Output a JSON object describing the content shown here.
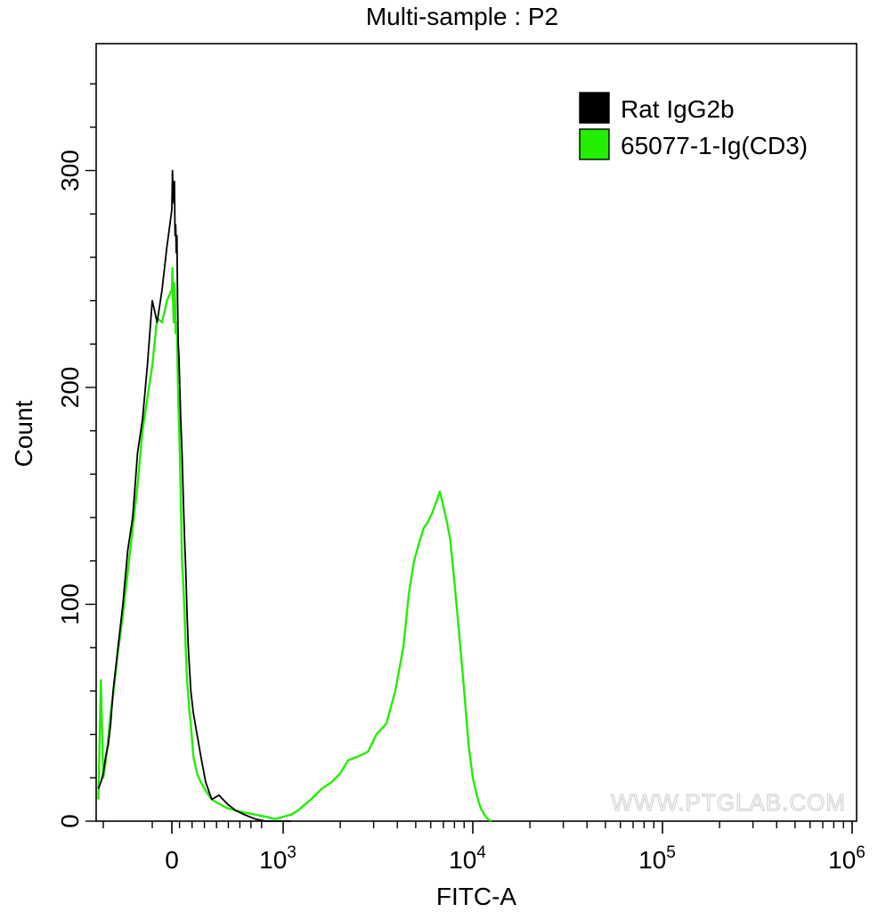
{
  "chart_data": {
    "type": "line",
    "title": "Multi-sample : P2",
    "xlabel": "FITC-A",
    "ylabel": "Count",
    "x_scale": "biexponential",
    "x_ticks": [
      {
        "label": "0",
        "value": 0
      },
      {
        "label": "10",
        "sup": "3",
        "value": 1000
      },
      {
        "label": "10",
        "sup": "4",
        "value": 10000
      },
      {
        "label": "10",
        "sup": "5",
        "value": 100000
      },
      {
        "label": "10",
        "sup": "6",
        "value": 1000000
      }
    ],
    "y_ticks": [
      {
        "label": "0",
        "value": 0
      },
      {
        "label": "100",
        "value": 100
      },
      {
        "label": "200",
        "value": 200
      },
      {
        "label": "300",
        "value": 300
      }
    ],
    "ylim": [
      0,
      360
    ],
    "grid": false,
    "legend_position": "top-right",
    "watermark": "WWW.PTGLAB.COM",
    "series": [
      {
        "name": "Rat IgG2b",
        "color": "#000000",
        "x": [
          -150,
          -145,
          -140,
          -135,
          -130,
          -125,
          -120,
          -110,
          -100,
          -90,
          -80,
          -70,
          -60,
          -50,
          -40,
          -30,
          -20,
          -10,
          0,
          5,
          10,
          15,
          20,
          25,
          30,
          35,
          40,
          45,
          50,
          55,
          60,
          70,
          80,
          90,
          100,
          110,
          120,
          130,
          150,
          170,
          200,
          230,
          270,
          320,
          380,
          450,
          520,
          600,
          700,
          800,
          900,
          1000,
          1100
        ],
        "y": [
          15,
          18,
          22,
          30,
          35,
          45,
          60,
          80,
          100,
          125,
          140,
          170,
          185,
          210,
          240,
          230,
          245,
          265,
          282,
          300,
          290,
          285,
          295,
          270,
          275,
          262,
          270,
          240,
          220,
          215,
          205,
          185,
          170,
          150,
          130,
          115,
          95,
          80,
          60,
          50,
          40,
          30,
          18,
          10,
          12,
          8,
          5,
          3,
          1,
          0,
          0,
          0,
          0
        ]
      },
      {
        "name": "65077-1-Ig(CD3)",
        "color": "#22ee00",
        "x": [
          -150,
          -145,
          -140,
          -135,
          -130,
          -125,
          -120,
          -110,
          -100,
          -90,
          -80,
          -70,
          -60,
          -50,
          -40,
          -30,
          -20,
          -10,
          0,
          5,
          10,
          15,
          20,
          25,
          30,
          35,
          40,
          45,
          50,
          60,
          70,
          80,
          90,
          100,
          110,
          120,
          130,
          140,
          150,
          170,
          200,
          230,
          270,
          320,
          380,
          450,
          520,
          600,
          700,
          800,
          900,
          1000,
          1100,
          1200,
          1400,
          1600,
          1800,
          2000,
          2200,
          2500,
          2800,
          3100,
          3500,
          3900,
          4300,
          4600,
          4900,
          5200,
          5500,
          5800,
          6100,
          6400,
          6700,
          7000,
          7300,
          7600,
          8000,
          8500,
          9000,
          9500,
          10000,
          10500,
          11000,
          11500,
          12000,
          12500
        ],
        "y": [
          10,
          65,
          20,
          28,
          38,
          50,
          58,
          78,
          95,
          115,
          135,
          155,
          180,
          195,
          210,
          232,
          230,
          240,
          245,
          255,
          238,
          230,
          248,
          240,
          225,
          230,
          230,
          210,
          195,
          175,
          150,
          120,
          110,
          95,
          78,
          65,
          58,
          50,
          45,
          30,
          22,
          18,
          14,
          10,
          8,
          6,
          5,
          4,
          3,
          2,
          1,
          2,
          3,
          5,
          10,
          15,
          18,
          22,
          28,
          30,
          32,
          40,
          45,
          60,
          80,
          105,
          120,
          128,
          135,
          138,
          142,
          147,
          152,
          145,
          138,
          130,
          110,
          85,
          60,
          35,
          20,
          12,
          6,
          3,
          1,
          0
        ]
      }
    ]
  }
}
